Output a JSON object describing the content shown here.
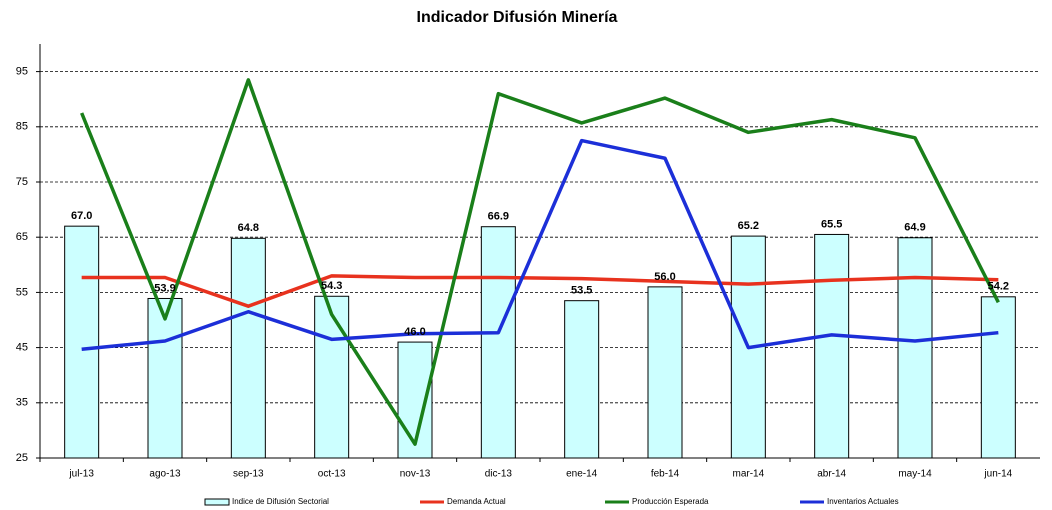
{
  "chart_data": {
    "type": "combo",
    "title": "Indicador Difusión Minería",
    "categories": [
      "jul-13",
      "ago-13",
      "sep-13",
      "oct-13",
      "nov-13",
      "dic-13",
      "ene-14",
      "feb-14",
      "mar-14",
      "abr-14",
      "may-14",
      "jun-14"
    ],
    "series": [
      {
        "name": "Indice de Difusión Sectorial",
        "type": "bar",
        "color": "#ccffff",
        "values": [
          67.0,
          53.9,
          64.8,
          54.3,
          46.0,
          66.9,
          53.5,
          56.0,
          65.2,
          65.5,
          64.9,
          54.2
        ],
        "value_labels": [
          "67.0",
          "53.9",
          "64.8",
          "54.3",
          "46.0",
          "66.9",
          "53.5",
          "56.0",
          "65.2",
          "65.5",
          "64.9",
          "54.2"
        ]
      },
      {
        "name": "Demanda Actual",
        "type": "line",
        "color": "#e8321e",
        "values": [
          57.7,
          57.7,
          52.5,
          58.0,
          57.7,
          57.7,
          57.5,
          57.0,
          56.5,
          57.2,
          57.7,
          57.3
        ]
      },
      {
        "name": "Producción Esperada",
        "type": "line",
        "color": "#1a7f1a",
        "values": [
          87.5,
          50.2,
          93.5,
          51.0,
          27.5,
          91.0,
          85.7,
          90.2,
          84.0,
          86.3,
          83.0,
          53.2
        ]
      },
      {
        "name": "Inventarios Actuales",
        "type": "line",
        "color": "#1c2fd8",
        "values": [
          44.7,
          46.2,
          51.5,
          46.5,
          47.5,
          47.7,
          82.5,
          79.3,
          45.0,
          47.3,
          46.2,
          47.7
        ]
      }
    ],
    "ylim": [
      25,
      100
    ],
    "yticks": [
      25,
      35,
      45,
      55,
      65,
      75,
      85,
      95
    ],
    "grid": true,
    "legend": "bottom"
  }
}
